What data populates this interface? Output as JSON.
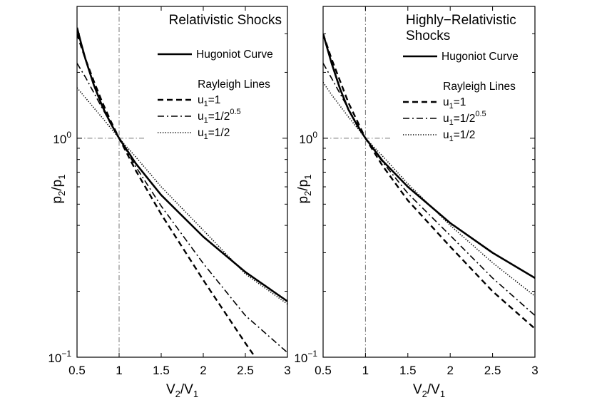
{
  "chart_data": [
    {
      "type": "line",
      "title": "Relativistic Shocks",
      "title_lines": [
        "Relativistic Shocks"
      ],
      "xlabel": "V2/V1",
      "ylabel": "p2/p1",
      "xlim": [
        0.5,
        3
      ],
      "ylim": [
        0.1,
        4
      ],
      "yscale": "log",
      "xticks": [
        "0.5",
        "1",
        "1.5",
        "2",
        "2.5",
        "3"
      ],
      "yticks": [
        {
          "value": 0.1,
          "base": "10",
          "exp": "−1"
        },
        {
          "value": 1,
          "base": "10",
          "exp": "0"
        }
      ],
      "reference_point": {
        "x": 1,
        "y": 1
      },
      "legend": {
        "hugoniot_label": "Hugoniot Curve",
        "rayleigh_heading": "Rayleigh Lines",
        "entries": [
          {
            "prefix": "u",
            "sub": "1",
            "suffix": "=1",
            "sup": ""
          },
          {
            "prefix": "u",
            "sub": "1",
            "suffix": "=1/2",
            "sup": "0.5"
          },
          {
            "prefix": "u",
            "sub": "1",
            "suffix": "=1/2",
            "sup": ""
          }
        ]
      },
      "series": [
        {
          "name": "Hugoniot Curve",
          "style": "solid",
          "x": [
            0.5,
            0.55,
            0.6,
            0.7,
            0.8,
            0.9,
            1.0,
            1.2,
            1.5,
            2.0,
            2.5,
            3.0
          ],
          "y": [
            3.2,
            2.7,
            2.3,
            1.75,
            1.4,
            1.17,
            1.0,
            0.765,
            0.55,
            0.355,
            0.245,
            0.18
          ]
        },
        {
          "name": "u1=1",
          "style": "dashed",
          "x": [
            0.5,
            0.55,
            0.6,
            0.7,
            0.8,
            0.9,
            1.0,
            1.2,
            1.5,
            2.0,
            2.5,
            2.7
          ],
          "y": [
            3.0,
            2.62,
            2.3,
            1.82,
            1.46,
            1.2,
            1.0,
            0.71,
            0.45,
            0.225,
            0.116,
            0.09
          ]
        },
        {
          "name": "u1=1/2^0.5",
          "style": "dashdot",
          "x": [
            0.5,
            0.6,
            0.8,
            1.0,
            1.2,
            1.5,
            2.0,
            2.5,
            3.0
          ],
          "y": [
            2.2,
            1.9,
            1.37,
            1.0,
            0.74,
            0.49,
            0.268,
            0.155,
            0.105
          ]
        },
        {
          "name": "u1=1/2",
          "style": "dotted",
          "x": [
            0.5,
            0.6,
            0.8,
            1.0,
            1.2,
            1.5,
            2.0,
            2.5,
            3.0
          ],
          "y": [
            1.7,
            1.53,
            1.24,
            1.0,
            0.82,
            0.6,
            0.38,
            0.24,
            0.175
          ]
        }
      ]
    },
    {
      "type": "line",
      "title": "Highly-Relativistic Shocks",
      "title_lines": [
        "Highly−Relativistic",
        "Shocks"
      ],
      "xlabel": "V2/V1",
      "ylabel": "p2/p1",
      "xlim": [
        0.5,
        3
      ],
      "ylim": [
        0.1,
        4
      ],
      "yscale": "log",
      "xticks": [
        "0.5",
        "1",
        "1.5",
        "2",
        "2.5",
        "3"
      ],
      "yticks": [
        {
          "value": 0.1,
          "base": "10",
          "exp": "−1"
        },
        {
          "value": 1,
          "base": "10",
          "exp": "0"
        }
      ],
      "reference_point": {
        "x": 1,
        "y": 1
      },
      "legend": {
        "hugoniot_label": "Hugoniot Curve",
        "rayleigh_heading": "Rayleigh Lines",
        "entries": [
          {
            "prefix": "u",
            "sub": "1",
            "suffix": "=1",
            "sup": ""
          },
          {
            "prefix": "u",
            "sub": "1",
            "suffix": "=1/2",
            "sup": "0.5"
          },
          {
            "prefix": "u",
            "sub": "1",
            "suffix": "=1/2",
            "sup": ""
          }
        ]
      },
      "series": [
        {
          "name": "Hugoniot Curve",
          "style": "solid",
          "x": [
            0.5,
            0.6,
            0.7,
            0.8,
            0.9,
            1.0,
            1.2,
            1.5,
            2.0,
            2.5,
            3.0
          ],
          "y": [
            3.0,
            2.2,
            1.68,
            1.35,
            1.15,
            1.0,
            0.79,
            0.6,
            0.41,
            0.3,
            0.23
          ]
        },
        {
          "name": "u1=1",
          "style": "dashed",
          "x": [
            0.5,
            0.6,
            0.8,
            1.0,
            1.2,
            1.5,
            2.0,
            2.5,
            3.0
          ],
          "y": [
            3.0,
            2.3,
            1.45,
            1.0,
            0.75,
            0.52,
            0.32,
            0.2,
            0.135
          ]
        },
        {
          "name": "u1=1/2^0.5",
          "style": "dashdot",
          "x": [
            0.5,
            0.6,
            0.8,
            1.0,
            1.2,
            1.5,
            2.0,
            2.5,
            3.0
          ],
          "y": [
            2.2,
            1.88,
            1.36,
            1.0,
            0.78,
            0.56,
            0.36,
            0.23,
            0.155
          ]
        },
        {
          "name": "u1=1/2",
          "style": "dotted",
          "x": [
            0.5,
            0.6,
            0.8,
            1.0,
            1.2,
            1.5,
            2.0,
            2.5,
            3.0
          ],
          "y": [
            1.8,
            1.58,
            1.25,
            1.0,
            0.83,
            0.62,
            0.4,
            0.27,
            0.19
          ]
        }
      ]
    }
  ]
}
